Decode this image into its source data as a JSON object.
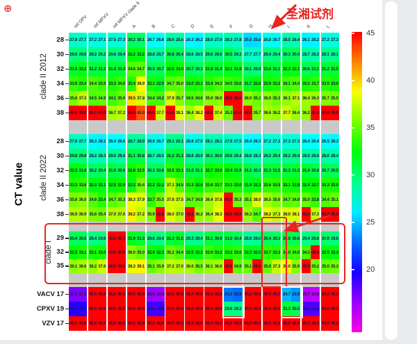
{
  "icons": {
    "corner_badge": "⊕"
  },
  "chart_data": {
    "type": "heatmap",
    "ylabel": "CT value",
    "annotation": "圣湘试剂",
    "accent_red": "#e8251f",
    "no_data_color": "#c9c9c9",
    "replicates_per_column": 2,
    "columns": [
      "ref OPV",
      "ref MPXV",
      "ref MPXV clade II",
      "A",
      "B",
      "C",
      "D",
      "E",
      "F",
      "G",
      "H",
      "I",
      "K",
      "L"
    ],
    "colorbar": {
      "ticks": [
        45,
        40,
        35,
        30,
        25,
        20
      ],
      "top_value": 45,
      "bottom_value": 13.3,
      "orientation": "vertical"
    },
    "highlighted_columns_white": [
      "F",
      "I"
    ],
    "highlighted_column_red": "H",
    "highlighted_group_red": "clade I",
    "row_groups": [
      {
        "label": "clade II 2012",
        "ticks": [
          "28",
          "30",
          "32",
          "34",
          "36",
          "38"
        ],
        "rows": [
          [
            [
              27.8,
              27.7
            ],
            [
              27.2,
              27.1
            ],
            [
              27.5,
              27.3
            ],
            [
              30.2,
              30.1
            ],
            [
              26.7,
              26.6
            ],
            [
              28.6,
              28.6
            ],
            [
              26.3,
              26.2
            ],
            [
              28.0,
              27.9
            ],
            [
              28.3,
              27.8
            ],
            [
              25.5,
              25.6
            ],
            [
              26.8,
              26.7
            ],
            [
              28.5,
              28.4
            ],
            [
              26.1,
              26.2
            ],
            [
              27.2,
              27.3
            ]
          ],
          [
            [
              29.6,
              29.6
            ],
            [
              29.2,
              29.2
            ],
            [
              29.6,
              29.4
            ],
            [
              32.2,
              32.2
            ],
            [
              28.8,
              28.7
            ],
            [
              30.8,
              30.4
            ],
            [
              28.6,
              28.5
            ],
            [
              29.6,
              29.6
            ],
            [
              30.5,
              29.3
            ],
            [
              27.7,
              27.7
            ],
            [
              29.4,
              29.4
            ],
            [
              30.3,
              30.4
            ],
            [
              28.7,
              28.3
            ],
            [
              29.1,
              29.1
            ]
          ],
          [
            [
              31.5,
              32.2
            ],
            [
              31.2,
              31.2
            ],
            [
              31.4,
              31.4
            ],
            [
              34.6,
              34.7
            ],
            [
              30.5,
              30.7
            ],
            [
              32.5,
              33.0
            ],
            [
              30.7,
              30.3
            ],
            [
              31.9,
              31.4
            ],
            [
              32.1,
              31.8
            ],
            [
              30.1,
              29.8
            ],
            [
              31.6,
              31.1
            ],
            [
              32.3,
              32.1
            ],
            [
              30.6,
              31.1
            ],
            [
              31.2,
              31.5
            ]
          ],
          [
            [
              33.9,
              33.4
            ],
            [
              34.4,
              33.9
            ],
            [
              33.3,
              34.0
            ],
            [
              33.4,
              38.9
            ],
            [
              33.1,
              32.0
            ],
            [
              34.7,
              35.0
            ],
            [
              33.0,
              33.1
            ],
            [
              33.4,
              34.3
            ],
            [
              34.0,
              33.6
            ],
            [
              31.7,
              32.6
            ],
            [
              32.9,
              33.2
            ],
            [
              34.1,
              34.4
            ],
            [
              33.1,
              33.7
            ],
            [
              33.5,
              33.0
            ]
          ],
          [
            [
              35.6,
              37.3
            ],
            [
              34.5,
              34.9
            ],
            [
              34.1,
              35.0
            ],
            [
              39.5,
              37.8
            ],
            [
              34.4,
              34.2
            ],
            [
              37.9,
              35.7
            ],
            [
              34.5,
              34.6
            ],
            [
              35.9,
              36.0
            ],
            [
              45.0,
              45.0
            ],
            [
              36.0,
              35.1
            ],
            [
              36.0,
              35.3
            ],
            [
              36.1,
              37.1
            ],
            [
              36.4,
              36.3
            ],
            [
              35.7,
              35.5
            ]
          ],
          [
            [
              45.0,
              45.0
            ],
            [
              45.0,
              45.0
            ],
            [
              36.7,
              37.2
            ],
            [
              45.0,
              43.0
            ],
            [
              45.0,
              37.7
            ],
            [
              45.0,
              38.1
            ],
            [
              36.4,
              38.2
            ],
            [
              45.0,
              37.4
            ],
            [
              35.3,
              45.0
            ],
            [
              45.0,
              35.7
            ],
            [
              36.6,
              36.2
            ],
            [
              37.7,
              36.4
            ],
            [
              36.2,
              45.0
            ],
            [
              45.0,
              45.0
            ]
          ]
        ]
      },
      {
        "label": "clade II 2022",
        "ticks": [
          "28",
          "30",
          "32",
          "34",
          "36",
          "38"
        ],
        "rows": [
          [
            [
              27.9,
              27.7
            ],
            [
              26.3,
              26.1
            ],
            [
              26.4,
              26.6
            ],
            [
              28.7,
              28.9
            ],
            [
              26.9,
              26.7
            ],
            [
              29.1,
              29.1
            ],
            [
              26.8,
              27.0
            ],
            [
              28.1,
              28.1
            ],
            [
              27.9,
              27.5
            ],
            [
              26.4,
              26.3
            ],
            [
              27.2,
              27.3
            ],
            [
              27.3,
              27.3
            ],
            [
              26.4,
              26.4
            ],
            [
              26.5,
              26.3
            ]
          ],
          [
            [
              29.8,
              29.8
            ],
            [
              28.2,
              28.3
            ],
            [
              29.0,
              28.6
            ],
            [
              31.1,
              30.8
            ],
            [
              28.7,
              28.5
            ],
            [
              31.2,
              31.3
            ],
            [
              28.8,
              28.9
            ],
            [
              30.1,
              30.0
            ],
            [
              29.6,
              29.4
            ],
            [
              28.6,
              28.3
            ],
            [
              29.2,
              29.4
            ],
            [
              29.2,
              29.4
            ],
            [
              28.5,
              28.6
            ],
            [
              28.6,
              28.4
            ]
          ],
          [
            [
              32.3,
              31.9
            ],
            [
              30.2,
              30.4
            ],
            [
              31.0,
              30.6
            ],
            [
              32.8,
              33.5
            ],
            [
              30.3,
              30.6
            ],
            [
              33.5,
              33.1
            ],
            [
              31.0,
              31.1
            ],
            [
              32.7,
              33.0
            ],
            [
              32.4,
              31.9
            ],
            [
              31.1,
              30.3
            ],
            [
              31.3,
              31.5
            ],
            [
              31.3,
              31.3
            ],
            [
              31.4,
              30.8
            ],
            [
              30.7,
              30.5
            ]
          ],
          [
            [
              33.3,
              33.6
            ],
            [
              32.3,
              32.1
            ],
            [
              32.5,
              32.9
            ],
            [
              32.2,
              35.4
            ],
            [
              32.2,
              32.2
            ],
            [
              37.1,
              34.5
            ],
            [
              33.3,
              32.6
            ],
            [
              33.8,
              33.7
            ],
            [
              33.3,
              33.0
            ],
            [
              31.9,
              32.3
            ],
            [
              33.6,
              33.5
            ],
            [
              33.1,
              32.8
            ],
            [
              32.4,
              32.7
            ],
            [
              33.3,
              33.0
            ]
          ],
          [
            [
              35.6,
              36.0
            ],
            [
              34.6,
              33.4
            ],
            [
              34.7,
              35.3
            ],
            [
              38.3,
              37.9
            ],
            [
              33.7,
              35.5
            ],
            [
              37.8,
              37.5
            ],
            [
              34.7,
              34.9
            ],
            [
              36.4,
              37.8
            ],
            [
              45.0,
              35.3
            ],
            [
              35.1,
              38.0
            ],
            [
              36.5,
              35.6
            ],
            [
              34.7,
              34.9
            ],
            [
              35.0,
              33.8
            ],
            [
              34.4,
              35.1
            ]
          ],
          [
            [
              36.9,
              36.9
            ],
            [
              35.6,
              35.4
            ],
            [
              37.0,
              37.0
            ],
            [
              39.2,
              37.2
            ],
            [
              35.9,
              45.0
            ],
            [
              38.0,
              37.0
            ],
            [
              45.0,
              36.2
            ],
            [
              36.4,
              38.3
            ],
            [
              45.0,
              45.0
            ],
            [
              36.3,
              34.7
            ],
            [
              38.2,
              37.3
            ],
            [
              38.0,
              38.1
            ],
            [
              45.0,
              37.3
            ],
            [
              45.0,
              45.0
            ]
          ]
        ]
      },
      {
        "label": "clade I",
        "ticks": [
          "29",
          "32",
          "35"
        ],
        "rows": [
          [
            [
              30.4,
              30.5
            ],
            [
              29.4,
              29.6
            ],
            [
              45.0,
              45.0
            ],
            [
              31.9,
              31.3
            ],
            [
              29.6,
              29.4
            ],
            [
              31.3,
              31.5
            ],
            [
              29.3,
              29.4
            ],
            [
              31.1,
              30.9
            ],
            [
              31.0,
              30.4
            ],
            [
              28.8,
              29.0
            ],
            [
              30.4,
              30.3
            ],
            [
              30.9,
              30.6
            ],
            [
              29.4,
              29.8
            ],
            [
              30.0,
              29.6
            ]
          ],
          [
            [
              32.5,
              33.1
            ],
            [
              33.1,
              33.0
            ],
            [
              45.0,
              45.0
            ],
            [
              36.0,
              35.0
            ],
            [
              32.9,
              32.3
            ],
            [
              35.2,
              34.4
            ],
            [
              32.5,
              32.2
            ],
            [
              33.9,
              33.2
            ],
            [
              33.2,
              33.6
            ],
            [
              32.3,
              32.0
            ],
            [
              33.7,
              33.3
            ],
            [
              34.0,
              34.0
            ],
            [
              34.3,
              45.0
            ],
            [
              32.5,
              32.4
            ]
          ],
          [
            [
              36.1,
              36.6
            ],
            [
              36.2,
              37.6
            ],
            [
              45.0,
              45.0
            ],
            [
              38.3,
              39.1
            ],
            [
              35.1,
              35.9
            ],
            [
              37.2,
              37.0
            ],
            [
              36.6,
              35.5
            ],
            [
              36.1,
              36.6
            ],
            [
              45.0,
              34.9
            ],
            [
              35.1,
              45.0
            ],
            [
              35.0,
              37.3
            ],
            [
              39.0,
              35.9
            ],
            [
              45.0,
              35.2
            ],
            [
              35.0,
              35.3
            ]
          ]
        ]
      },
      {
        "label": "",
        "ticks": [
          "VACV 17",
          "CPXV 19",
          "VZV 17"
        ],
        "rows": [
          [
            [
              17.1,
              17.1
            ],
            [
              45.0,
              45.0
            ],
            [
              45.0,
              45.0
            ],
            [
              45.0,
              45.0
            ],
            [
              16.5,
              16.3
            ],
            [
              45.0,
              45.0
            ],
            [
              45.0,
              45.0
            ],
            [
              45.0,
              45.0
            ],
            [
              23.2,
              22.8
            ],
            [
              45.0,
              45.0
            ],
            [
              45.0,
              45.0
            ],
            [
              24.7,
              23.9
            ],
            [
              15.7,
              15.5
            ],
            [
              45.0,
              45.0
            ]
          ],
          [
            [
              19.3,
              19.2
            ],
            [
              45.0,
              45.0
            ],
            [
              45.0,
              45.0
            ],
            [
              45.0,
              45.0
            ],
            [
              18.6,
              18.6
            ],
            [
              45.0,
              45.0
            ],
            [
              45.0,
              45.0
            ],
            [
              45.0,
              45.0
            ],
            [
              29.6,
              29.3
            ],
            [
              45.0,
              45.0
            ],
            [
              45.0,
              45.0
            ],
            [
              31.3,
              30.5
            ],
            [
              18.3,
              18.3
            ],
            [
              45.0,
              45.0
            ]
          ],
          [
            [
              45.0,
              45.0
            ],
            [
              45.0,
              45.0
            ],
            [
              45.0,
              45.0
            ],
            [
              45.0,
              45.0
            ],
            [
              45.0,
              45.0
            ],
            [
              45.0,
              45.0
            ],
            [
              45.0,
              45.0
            ],
            [
              45.0,
              45.0
            ],
            [
              45.0,
              45.0
            ],
            [
              45.0,
              45.0
            ],
            [
              45.0,
              45.0
            ],
            [
              45.0,
              45.0
            ],
            [
              45.0,
              45.0
            ],
            [
              45.0,
              45.0
            ]
          ]
        ]
      }
    ]
  }
}
